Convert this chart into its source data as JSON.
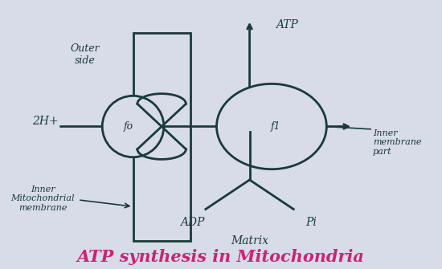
{
  "background_color": "#d8dce8",
  "title": "ATP synthesis in Mitochondria",
  "title_color": "#cc2277",
  "title_fontsize": 15,
  "ink_color": "#1a3a3a",
  "fo_label": "fo",
  "f1_label": "f1",
  "outer_side_label": "Outer\nside",
  "inner_mem_label": "Inner\nMitochondrial\nmembrane",
  "inner_mem_part_label": "Inner\nmembrane\npart",
  "atp_label": "ATP",
  "adp_label": "ADP",
  "pi_label": "Pi",
  "matrix_label": "Matrix",
  "h_label": "2H+"
}
